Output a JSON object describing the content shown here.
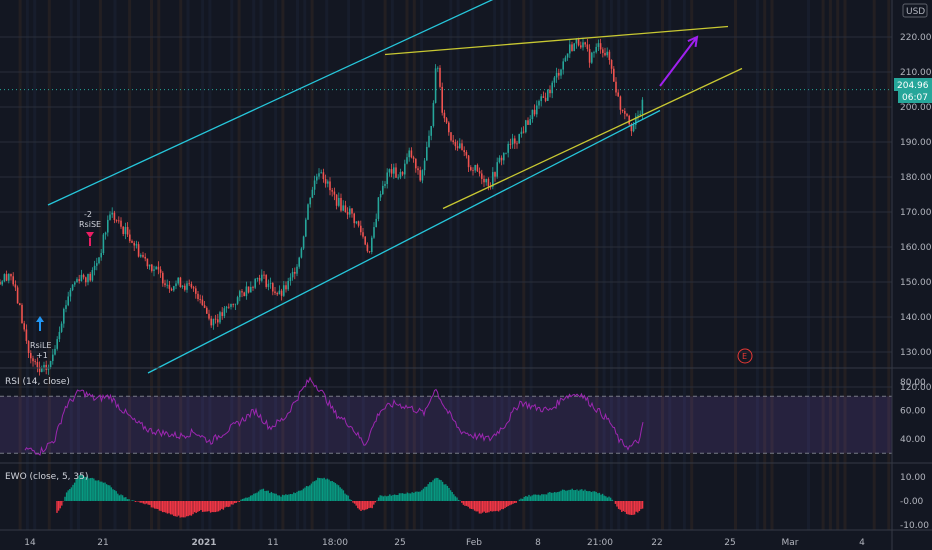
{
  "chart_data": [
    {
      "type": "candlestick",
      "currency": "USD",
      "y_ticks": [
        220.0,
        210.0,
        200.0,
        190.0,
        180.0,
        170.0,
        160.0,
        150.0,
        140.0,
        130.0,
        120.0
      ],
      "y_tick_labels": [
        "220.00",
        "210.00",
        "200.00",
        "190.00",
        "180.00",
        "170.00",
        "160.00",
        "150.00",
        "140.00",
        "130.00",
        "120.00"
      ],
      "ylim": [
        113,
        238
      ],
      "last_price": "204.96",
      "countdown": "06:07",
      "x_tick_labels": [
        "14",
        "21",
        "2021",
        "11",
        "18:00",
        "25",
        "Feb",
        "8",
        "21:00",
        "22",
        "25",
        "Mar",
        "4"
      ],
      "earnings_marker": "E",
      "signals": [
        {
          "name": "RsiLE",
          "qty": "+1",
          "price": 126
        },
        {
          "name": "RsiSE",
          "qty": "-2",
          "price": 155
        }
      ],
      "price_path": [
        {
          "i": 0,
          "p": 150
        },
        {
          "i": 10,
          "p": 153
        },
        {
          "i": 20,
          "p": 142
        },
        {
          "i": 30,
          "p": 128
        },
        {
          "i": 40,
          "p": 124
        },
        {
          "i": 50,
          "p": 126
        },
        {
          "i": 60,
          "p": 138
        },
        {
          "i": 70,
          "p": 148
        },
        {
          "i": 80,
          "p": 152
        },
        {
          "i": 90,
          "p": 151
        },
        {
          "i": 100,
          "p": 158
        },
        {
          "i": 110,
          "p": 170
        },
        {
          "i": 120,
          "p": 166
        },
        {
          "i": 130,
          "p": 163
        },
        {
          "i": 140,
          "p": 158
        },
        {
          "i": 150,
          "p": 155
        },
        {
          "i": 160,
          "p": 152
        },
        {
          "i": 170,
          "p": 149
        },
        {
          "i": 180,
          "p": 150
        },
        {
          "i": 190,
          "p": 148
        },
        {
          "i": 200,
          "p": 146
        },
        {
          "i": 210,
          "p": 139
        },
        {
          "i": 220,
          "p": 140
        },
        {
          "i": 230,
          "p": 143
        },
        {
          "i": 240,
          "p": 146
        },
        {
          "i": 250,
          "p": 149
        },
        {
          "i": 260,
          "p": 152
        },
        {
          "i": 270,
          "p": 149
        },
        {
          "i": 280,
          "p": 146
        },
        {
          "i": 290,
          "p": 150
        },
        {
          "i": 300,
          "p": 158
        },
        {
          "i": 310,
          "p": 175
        },
        {
          "i": 320,
          "p": 183
        },
        {
          "i": 330,
          "p": 176
        },
        {
          "i": 340,
          "p": 172
        },
        {
          "i": 350,
          "p": 170
        },
        {
          "i": 360,
          "p": 165
        },
        {
          "i": 370,
          "p": 158
        },
        {
          "i": 380,
          "p": 176
        },
        {
          "i": 390,
          "p": 182
        },
        {
          "i": 400,
          "p": 180
        },
        {
          "i": 410,
          "p": 187
        },
        {
          "i": 420,
          "p": 179
        },
        {
          "i": 430,
          "p": 192
        },
        {
          "i": 437,
          "p": 214
        },
        {
          "i": 442,
          "p": 200
        },
        {
          "i": 450,
          "p": 192
        },
        {
          "i": 460,
          "p": 188
        },
        {
          "i": 470,
          "p": 183
        },
        {
          "i": 480,
          "p": 181
        },
        {
          "i": 490,
          "p": 178
        },
        {
          "i": 500,
          "p": 185
        },
        {
          "i": 510,
          "p": 189
        },
        {
          "i": 520,
          "p": 192
        },
        {
          "i": 530,
          "p": 197
        },
        {
          "i": 540,
          "p": 201
        },
        {
          "i": 550,
          "p": 205
        },
        {
          "i": 560,
          "p": 211
        },
        {
          "i": 570,
          "p": 217
        },
        {
          "i": 580,
          "p": 219
        },
        {
          "i": 590,
          "p": 214
        },
        {
          "i": 600,
          "p": 218
        },
        {
          "i": 610,
          "p": 213
        },
        {
          "i": 620,
          "p": 200
        },
        {
          "i": 626,
          "p": 199
        },
        {
          "i": 632,
          "p": 194
        },
        {
          "i": 638,
          "p": 197
        },
        {
          "i": 643,
          "p": 201
        }
      ],
      "trendlines": [
        {
          "name": "channel-upper",
          "color": "#26c6da",
          "from": {
            "i": 48,
            "p": 172
          },
          "to": {
            "i": 548,
            "p": 238
          }
        },
        {
          "name": "channel-lower",
          "color": "#26c6da",
          "from": {
            "i": 148,
            "p": 124
          },
          "to": {
            "i": 660,
            "p": 199
          }
        },
        {
          "name": "wedge-upper",
          "color": "#c8c832",
          "from": {
            "i": 385,
            "p": 215
          },
          "to": {
            "i": 728,
            "p": 223
          }
        },
        {
          "name": "wedge-lower",
          "color": "#c8c832",
          "from": {
            "i": 443,
            "p": 171
          },
          "to": {
            "i": 742,
            "p": 211
          }
        }
      ],
      "projection_arrow": {
        "color": "#a020f0",
        "from": {
          "i": 660,
          "p": 206
        },
        "to": {
          "i": 697,
          "p": 220
        }
      }
    },
    {
      "type": "line",
      "name": "RSI (14, close)",
      "y_ticks": [
        80.0,
        60.0,
        40.0
      ],
      "y_tick_labels": [
        "80.00",
        "60.00",
        "40.00"
      ],
      "ylim": [
        25,
        88
      ],
      "band": [
        30,
        70
      ],
      "color": "#9c27b0",
      "path": [
        {
          "i": 25,
          "v": 33
        },
        {
          "i": 40,
          "v": 31
        },
        {
          "i": 55,
          "v": 40
        },
        {
          "i": 65,
          "v": 62
        },
        {
          "i": 80,
          "v": 74
        },
        {
          "i": 95,
          "v": 68
        },
        {
          "i": 110,
          "v": 70
        },
        {
          "i": 120,
          "v": 62
        },
        {
          "i": 135,
          "v": 52
        },
        {
          "i": 150,
          "v": 46
        },
        {
          "i": 165,
          "v": 44
        },
        {
          "i": 180,
          "v": 42
        },
        {
          "i": 195,
          "v": 45
        },
        {
          "i": 210,
          "v": 38
        },
        {
          "i": 225,
          "v": 45
        },
        {
          "i": 240,
          "v": 52
        },
        {
          "i": 255,
          "v": 60
        },
        {
          "i": 270,
          "v": 48
        },
        {
          "i": 285,
          "v": 55
        },
        {
          "i": 300,
          "v": 72
        },
        {
          "i": 310,
          "v": 82
        },
        {
          "i": 320,
          "v": 75
        },
        {
          "i": 335,
          "v": 58
        },
        {
          "i": 350,
          "v": 50
        },
        {
          "i": 365,
          "v": 36
        },
        {
          "i": 380,
          "v": 60
        },
        {
          "i": 395,
          "v": 65
        },
        {
          "i": 410,
          "v": 62
        },
        {
          "i": 425,
          "v": 58
        },
        {
          "i": 435,
          "v": 76
        },
        {
          "i": 445,
          "v": 62
        },
        {
          "i": 460,
          "v": 46
        },
        {
          "i": 475,
          "v": 42
        },
        {
          "i": 490,
          "v": 40
        },
        {
          "i": 505,
          "v": 50
        },
        {
          "i": 520,
          "v": 66
        },
        {
          "i": 535,
          "v": 62
        },
        {
          "i": 550,
          "v": 60
        },
        {
          "i": 565,
          "v": 70
        },
        {
          "i": 580,
          "v": 72
        },
        {
          "i": 595,
          "v": 62
        },
        {
          "i": 610,
          "v": 52
        },
        {
          "i": 620,
          "v": 38
        },
        {
          "i": 630,
          "v": 34
        },
        {
          "i": 640,
          "v": 40
        },
        {
          "i": 643,
          "v": 50
        }
      ]
    },
    {
      "type": "bar",
      "name": "EWO (close, 5, 35)",
      "y_ticks": [
        10.0,
        -0.0,
        -10.0
      ],
      "y_tick_labels": [
        "10.00",
        "-0.00",
        "-10.00"
      ],
      "ylim": [
        -13,
        13
      ],
      "positive_color": "#089981",
      "negative_color": "#f23645",
      "path": [
        {
          "i": 57,
          "v": -5
        },
        {
          "i": 62,
          "v": -2
        },
        {
          "i": 66,
          "v": 3
        },
        {
          "i": 80,
          "v": 11
        },
        {
          "i": 95,
          "v": 9
        },
        {
          "i": 108,
          "v": 7
        },
        {
          "i": 118,
          "v": 3
        },
        {
          "i": 130,
          "v": 0.5
        },
        {
          "i": 145,
          "v": -1
        },
        {
          "i": 165,
          "v": -5
        },
        {
          "i": 185,
          "v": -7
        },
        {
          "i": 200,
          "v": -4
        },
        {
          "i": 215,
          "v": -5
        },
        {
          "i": 235,
          "v": -1
        },
        {
          "i": 245,
          "v": 1
        },
        {
          "i": 262,
          "v": 5
        },
        {
          "i": 280,
          "v": 2
        },
        {
          "i": 300,
          "v": 4
        },
        {
          "i": 320,
          "v": 10
        },
        {
          "i": 335,
          "v": 8
        },
        {
          "i": 348,
          "v": 2
        },
        {
          "i": 360,
          "v": -4
        },
        {
          "i": 372,
          "v": -3
        },
        {
          "i": 380,
          "v": 2
        },
        {
          "i": 400,
          "v": 3
        },
        {
          "i": 420,
          "v": 4
        },
        {
          "i": 437,
          "v": 10
        },
        {
          "i": 450,
          "v": 5
        },
        {
          "i": 462,
          "v": -1
        },
        {
          "i": 480,
          "v": -5
        },
        {
          "i": 500,
          "v": -4
        },
        {
          "i": 515,
          "v": -1
        },
        {
          "i": 525,
          "v": 2
        },
        {
          "i": 545,
          "v": 3
        },
        {
          "i": 570,
          "v": 5
        },
        {
          "i": 595,
          "v": 4
        },
        {
          "i": 612,
          "v": 1
        },
        {
          "i": 620,
          "v": -4
        },
        {
          "i": 632,
          "v": -6
        },
        {
          "i": 643,
          "v": -3
        }
      ]
    }
  ]
}
